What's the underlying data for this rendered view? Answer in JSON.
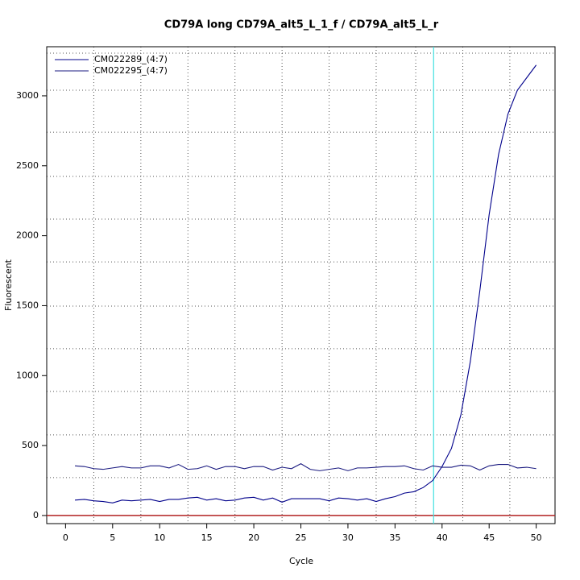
{
  "chart_data": {
    "type": "line",
    "title": "CD79A long CD79A_alt5_L_1_f / CD79A_alt5_L_r",
    "xlabel": "Cycle",
    "ylabel": "Fluorescent",
    "x": [
      1,
      2,
      3,
      4,
      5,
      6,
      7,
      8,
      9,
      10,
      11,
      12,
      13,
      14,
      15,
      16,
      17,
      18,
      19,
      20,
      21,
      22,
      23,
      24,
      25,
      26,
      27,
      28,
      29,
      30,
      31,
      32,
      33,
      34,
      35,
      36,
      37,
      38,
      39,
      40,
      41,
      42,
      43,
      44,
      45,
      46,
      47,
      48,
      49,
      50
    ],
    "series": [
      {
        "name": "CM022289_(4:7)",
        "color": "#00008b",
        "values": [
          110,
          115,
          105,
          100,
          90,
          110,
          105,
          110,
          115,
          100,
          115,
          115,
          125,
          130,
          110,
          120,
          105,
          110,
          125,
          130,
          110,
          125,
          95,
          120,
          120,
          120,
          120,
          105,
          125,
          120,
          110,
          120,
          100,
          120,
          135,
          160,
          170,
          200,
          250,
          350,
          480,
          720,
          1100,
          1600,
          2150,
          2580,
          2870,
          3040,
          3130,
          3220
        ]
      },
      {
        "name": "CM022295_(4:7)",
        "color": "#1a1a80",
        "values": [
          355,
          350,
          335,
          330,
          340,
          350,
          340,
          340,
          355,
          355,
          340,
          365,
          330,
          335,
          355,
          330,
          350,
          350,
          335,
          350,
          350,
          325,
          345,
          335,
          370,
          330,
          320,
          330,
          340,
          320,
          340,
          340,
          345,
          350,
          350,
          355,
          335,
          325,
          355,
          345,
          345,
          360,
          355,
          325,
          355,
          365,
          365,
          340,
          345,
          335
        ]
      }
    ],
    "xlim": [
      -2,
      52
    ],
    "ylim": [
      -58,
      3351
    ],
    "xticks": [
      0,
      5,
      10,
      15,
      20,
      25,
      30,
      35,
      40,
      45,
      50
    ],
    "yticks": [
      0,
      500,
      1000,
      1500,
      2000,
      2500,
      3000
    ],
    "xgrid": [
      3,
      8,
      13,
      18,
      23,
      28,
      33,
      37.2,
      42.2,
      47.2
    ],
    "ygrid": [
      271,
      576,
      887,
      1192,
      1497,
      1813,
      2119,
      2424,
      2740,
      3040,
      3305
    ],
    "threshold_x": 39.1,
    "threshold_color": "#40e0e0",
    "baseline_y": 0,
    "baseline_color": "#b22222",
    "legend": "top-left"
  }
}
